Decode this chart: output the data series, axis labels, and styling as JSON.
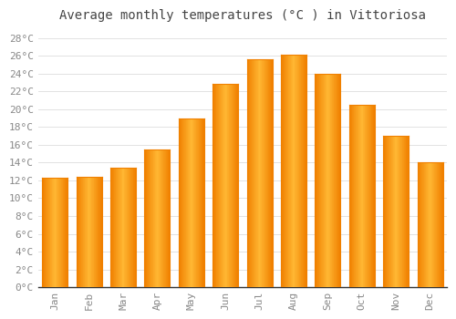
{
  "title": "Average monthly temperatures (°C ) in Vittoriosa",
  "months": [
    "Jan",
    "Feb",
    "Mar",
    "Apr",
    "May",
    "Jun",
    "Jul",
    "Aug",
    "Sep",
    "Oct",
    "Nov",
    "Dec"
  ],
  "values": [
    12.3,
    12.4,
    13.4,
    15.5,
    19.0,
    22.8,
    25.6,
    26.1,
    24.0,
    20.5,
    17.0,
    14.0
  ],
  "bar_color_center": "#FFB733",
  "bar_color_edge": "#F08000",
  "background_color": "#FFFFFF",
  "grid_color": "#DDDDDD",
  "ylim": [
    0,
    29
  ],
  "ytick_step": 2,
  "title_fontsize": 10,
  "tick_fontsize": 8,
  "tick_color": "#888888",
  "title_color": "#444444",
  "axis_color": "#333333",
  "bar_width": 0.75
}
